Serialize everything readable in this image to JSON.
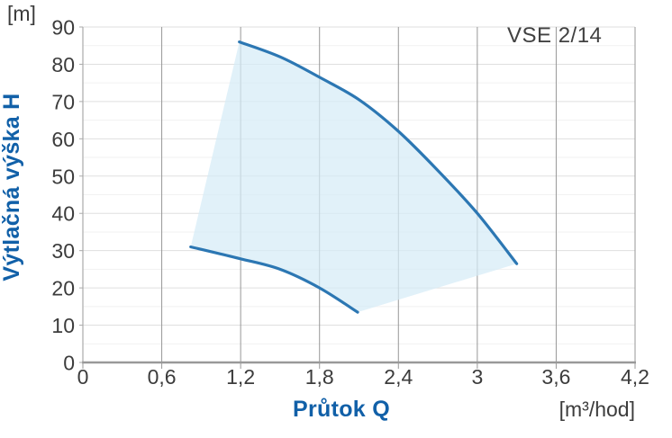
{
  "header": {
    "model_label": "VSE 2/14"
  },
  "axes": {
    "y_unit": "[m]",
    "y_title": "Výtlačná výška H",
    "x_title": "Průtok Q",
    "x_unit": "[m³/hod]"
  },
  "colors": {
    "accent_blue": "#1160a8",
    "curve_blue": "#2c77b3",
    "fill_blue": "#d6ebf7",
    "grid_major_h": "#dfdfdf",
    "grid_minor_h": "#f1f1f1",
    "grid_vertical": "#979797",
    "axis_line": "#999999",
    "tick_text": "#3c3c3c",
    "annotation_text": "#414141"
  },
  "chart_data": {
    "type": "area",
    "title": "VSE 2/14",
    "xlabel": "Průtok Q",
    "ylabel": "Výtlačná výška H",
    "x_unit": "m³/hod",
    "y_unit": "m",
    "xlim": [
      0,
      4.2
    ],
    "ylim": [
      0,
      90
    ],
    "x_ticks": [
      0,
      0.6,
      1.2,
      1.8,
      2.4,
      3,
      3.6,
      4.2
    ],
    "x_tick_labels": [
      "0",
      "0,6",
      "1,2",
      "1,8",
      "2,4",
      "3",
      "3,6",
      "4,2"
    ],
    "y_ticks": [
      0,
      10,
      20,
      30,
      40,
      50,
      60,
      70,
      80,
      90
    ],
    "y_minor_ticks": [
      5,
      15,
      25,
      35,
      45,
      55,
      65,
      75,
      85
    ],
    "grid": "on",
    "legend": "none",
    "series": [
      {
        "name": "upper-limit-curve",
        "points": [
          [
            1.19,
            86
          ],
          [
            1.5,
            82
          ],
          [
            1.8,
            76.5
          ],
          [
            2.1,
            70.5
          ],
          [
            2.4,
            62
          ],
          [
            2.7,
            51.5
          ],
          [
            3.0,
            40
          ],
          [
            3.3,
            26.5
          ]
        ]
      },
      {
        "name": "lower-limit-curve",
        "points": [
          [
            0.82,
            31
          ],
          [
            1.2,
            27.8
          ],
          [
            1.5,
            25
          ],
          [
            1.8,
            20
          ],
          [
            2.09,
            13.5
          ]
        ]
      }
    ],
    "envelope": "operating region between upper and lower curves, closed by straight segments at both ends"
  }
}
